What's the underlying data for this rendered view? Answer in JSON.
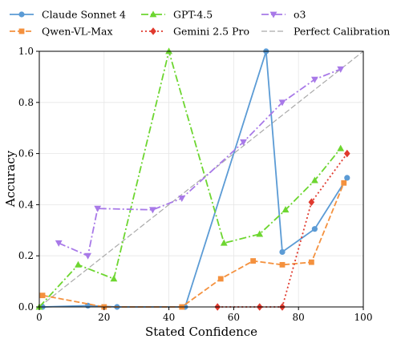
{
  "chart_data": {
    "type": "line",
    "xlabel": "Stated Confidence",
    "ylabel": "Accuracy",
    "xlim": [
      0,
      100
    ],
    "ylim": [
      0,
      1.0
    ],
    "xticks": [
      0,
      20,
      40,
      60,
      80,
      100
    ],
    "xtick_labels": [
      "0",
      "20",
      "40",
      "60",
      "80",
      "100"
    ],
    "yticks": [
      0.0,
      0.2,
      0.4,
      0.6,
      0.8,
      1.0
    ],
    "ytick_labels": [
      "0.0",
      "0.2",
      "0.4",
      "0.6",
      "0.8",
      "1.0"
    ],
    "grid": true,
    "legend_position": "top",
    "series": [
      {
        "name": "Claude Sonnet 4",
        "color": "#5b9bd5",
        "marker": "circle",
        "line_style": "solid",
        "x": [
          1,
          15,
          24,
          45,
          70,
          75,
          85,
          95
        ],
        "y": [
          0.0,
          0.005,
          0.0,
          0.0,
          1.0,
          0.215,
          0.305,
          0.505
        ]
      },
      {
        "name": "Qwen-VL-Max",
        "color": "#f4913e",
        "marker": "square",
        "line_style": "dashed",
        "x": [
          1,
          20,
          44,
          56,
          66,
          75,
          84,
          94
        ],
        "y": [
          0.045,
          0.0,
          0.0,
          0.11,
          0.18,
          0.165,
          0.175,
          0.485
        ]
      },
      {
        "name": "GPT-4.5",
        "color": "#6dd630",
        "marker": "triangle-up",
        "line_style": "dashdot",
        "x": [
          0,
          12,
          23,
          40,
          57,
          68,
          76,
          85,
          93
        ],
        "y": [
          0.0,
          0.165,
          0.11,
          1.0,
          0.25,
          0.285,
          0.38,
          0.495,
          0.62
        ]
      },
      {
        "name": "Gemini 2.5 Pro",
        "color": "#e03a2e",
        "marker": "diamond",
        "line_style": "dotted",
        "x": [
          55,
          68,
          75,
          84,
          95
        ],
        "y": [
          0.0,
          0.0,
          0.0,
          0.41,
          0.6
        ]
      },
      {
        "name": "o3",
        "color": "#a879e8",
        "marker": "triangle-down",
        "line_style": "dashdot",
        "x": [
          6,
          15,
          18,
          35,
          44,
          63,
          75,
          85,
          93
        ],
        "y": [
          0.25,
          0.2,
          0.385,
          0.38,
          0.425,
          0.645,
          0.8,
          0.89,
          0.93
        ]
      },
      {
        "name": "Perfect Calibration",
        "color": "#aaaaaa",
        "marker": "none",
        "line_style": "dashed",
        "x": [
          0,
          100
        ],
        "y": [
          0.0,
          1.0
        ]
      }
    ]
  }
}
